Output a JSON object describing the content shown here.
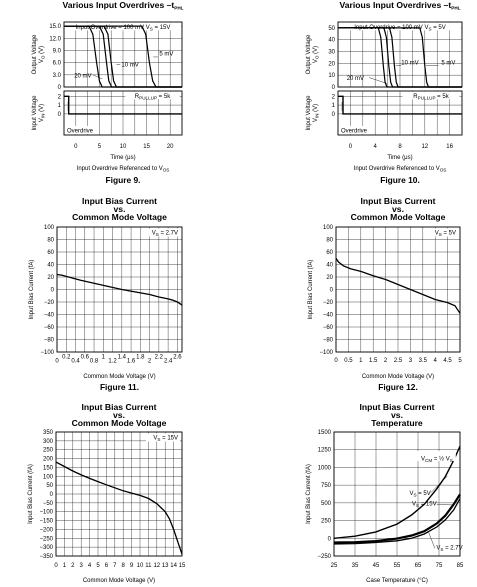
{
  "charts": [
    {
      "id": "fig9",
      "type": "line",
      "title": [
        "Various Input Overdrives –t_PHL"
      ],
      "figure": "Figure 9.",
      "time_axis": {
        "label": "Time (μs)",
        "sublabel": "Input Overdrive Referenced to V_OS",
        "ticks": [
          "0",
          "5",
          "10",
          "15",
          "20"
        ],
        "range": [
          -2.5,
          22.5
        ]
      },
      "output": {
        "label": "Output Voltage V_O (V)",
        "ticks": [
          "15.0",
          "12.0",
          "9.0",
          "6.0",
          "3.0",
          "0"
        ],
        "range": [
          0,
          16
        ],
        "header": "Input Overdrive = 100 mV   V_S = 15V"
      },
      "input": {
        "label": "Input Voltage V_IN (V)",
        "ticks": [
          "2",
          "1",
          "0"
        ],
        "range": [
          -2.4,
          2.6
        ],
        "annotation": "R_PULLUP = 5k",
        "overdrive_label": "Overdrive"
      },
      "curve_labels": [
        "5 mV",
        "10 mV",
        "20 mV"
      ],
      "chart_data": {
        "type": "line",
        "series": [
          {
            "name": "100 mV",
            "points": [
              [
                -2.5,
                15
              ],
              [
                2.8,
                15
              ],
              [
                3.6,
                13
              ],
              [
                4.4,
                6
              ],
              [
                5.0,
                1.5
              ],
              [
                5.6,
                0
              ],
              [
                22.5,
                0
              ]
            ]
          },
          {
            "name": "20 mV",
            "points": [
              [
                -2.5,
                15
              ],
              [
                5.0,
                15
              ],
              [
                5.8,
                13
              ],
              [
                6.5,
                6
              ],
              [
                7.0,
                1.5
              ],
              [
                7.6,
                0
              ],
              [
                22.5,
                0
              ]
            ]
          },
          {
            "name": "10 mV",
            "points": [
              [
                -2.5,
                15
              ],
              [
                6.0,
                15
              ],
              [
                6.8,
                13
              ],
              [
                7.5,
                6
              ],
              [
                8.0,
                1.5
              ],
              [
                8.6,
                0
              ],
              [
                22.5,
                0
              ]
            ]
          },
          {
            "name": "5 mV",
            "points": [
              [
                -2.5,
                15
              ],
              [
                14.0,
                15
              ],
              [
                14.8,
                13
              ],
              [
                15.6,
                6
              ],
              [
                16.3,
                1.5
              ],
              [
                17.0,
                0
              ],
              [
                22.5,
                0
              ]
            ]
          }
        ],
        "input_step": [
          [
            -2.5,
            2
          ],
          [
            -1.5,
            2
          ],
          [
            -1.5,
            0
          ],
          [
            22.5,
            0
          ]
        ]
      }
    },
    {
      "id": "fig10",
      "type": "line",
      "title": [
        "Various Input Overdrives –t_PHL"
      ],
      "figure": "Figure 10.",
      "time_axis": {
        "label": "Time (μs)",
        "sublabel": "Input Overdrive Referenced to V_OS",
        "ticks": [
          "0",
          "4",
          "8",
          "12",
          "16"
        ],
        "range": [
          -2,
          18
        ]
      },
      "output": {
        "label": "Output Voltage V_O (V)",
        "ticks": [
          "50",
          "40",
          "30",
          "20",
          "10",
          "0"
        ],
        "range": [
          0,
          55
        ],
        "header": "Input Overdrive = 100 mV   V_S = 5V"
      },
      "input": {
        "label": "Input Voltage V_IN (V)",
        "ticks": [
          "2",
          "1",
          "0"
        ],
        "range": [
          -2.4,
          2.6
        ],
        "annotation": "R_PULLUP = 5k",
        "overdrive_label": "Overdrive"
      },
      "curve_labels": [
        "5 mV",
        "10 mV",
        "20 mV"
      ],
      "chart_data": {
        "type": "line",
        "series": [
          {
            "name": "100 mV",
            "points": [
              [
                -2,
                50
              ],
              [
                4.5,
                50
              ],
              [
                4.9,
                42
              ],
              [
                5.3,
                18
              ],
              [
                5.6,
                4
              ],
              [
                5.9,
                0
              ],
              [
                18,
                0
              ]
            ]
          },
          {
            "name": "20 mV",
            "points": [
              [
                -2,
                50
              ],
              [
                5.4,
                50
              ],
              [
                5.8,
                42
              ],
              [
                6.2,
                18
              ],
              [
                6.5,
                4
              ],
              [
                6.8,
                0
              ],
              [
                18,
                0
              ]
            ]
          },
          {
            "name": "10 mV",
            "points": [
              [
                -2,
                50
              ],
              [
                6.3,
                50
              ],
              [
                6.7,
                42
              ],
              [
                7.1,
                18
              ],
              [
                7.4,
                4
              ],
              [
                7.7,
                0
              ],
              [
                18,
                0
              ]
            ]
          },
          {
            "name": "5 mV",
            "points": [
              [
                -2,
                50
              ],
              [
                11.2,
                50
              ],
              [
                11.6,
                42
              ],
              [
                12.0,
                18
              ],
              [
                12.3,
                4
              ],
              [
                12.6,
                0
              ],
              [
                18,
                0
              ]
            ]
          }
        ],
        "input_step": [
          [
            -2,
            2
          ],
          [
            -1.2,
            2
          ],
          [
            -1.2,
            0
          ],
          [
            18,
            0
          ]
        ]
      }
    },
    {
      "id": "fig11",
      "title": [
        "Input Bias Current",
        "vs.",
        "Common Mode Voltage"
      ],
      "figure": "Figure 11.",
      "ylabel": "Input Bias Current (fA)",
      "xlabel": "Common Mode Voltage (V)",
      "note": "V_S = 2.7V",
      "yticks": [
        "100",
        "80",
        "60",
        "40",
        "20",
        "0",
        "−20",
        "−40",
        "−60",
        "−80",
        "−100"
      ],
      "xticks": [
        "0",
        "0.2",
        "0.4",
        "0.6",
        "0.8",
        "1",
        "1.2",
        "1.4",
        "1.6",
        "1.8",
        "2",
        "2.2",
        "2.4",
        "2.6"
      ],
      "chart_data": {
        "type": "line",
        "xlim": [
          0,
          2.7
        ],
        "ylim": [
          -100,
          100
        ],
        "x": [
          0,
          0.1,
          0.3,
          0.5,
          0.8,
          1.1,
          1.4,
          1.7,
          2.0,
          2.2,
          2.4,
          2.5,
          2.6,
          2.7
        ],
        "y": [
          24,
          23,
          19,
          15,
          10,
          5,
          0,
          -4,
          -8,
          -12,
          -15,
          -17,
          -20,
          -25
        ]
      }
    },
    {
      "id": "fig12",
      "title": [
        "Input Bias Current",
        "vs.",
        "Common Mode Voltage"
      ],
      "figure": "Figure 12.",
      "ylabel": "Input Bias Current (fA)",
      "xlabel": "Common Mode Voltage (V)",
      "note": "V_S = 5V",
      "yticks": [
        "100",
        "80",
        "60",
        "40",
        "20",
        "0",
        "−20",
        "−40",
        "−60",
        "−80",
        "−100"
      ],
      "xticks": [
        "0",
        "0.5",
        "1",
        "1.5",
        "2",
        "2.5",
        "3",
        "3.5",
        "4",
        "4.5",
        "5"
      ],
      "chart_data": {
        "type": "line",
        "xlim": [
          0,
          5
        ],
        "ylim": [
          -100,
          100
        ],
        "x": [
          0,
          0.1,
          0.3,
          0.6,
          1.0,
          1.5,
          2.0,
          2.5,
          3.0,
          3.5,
          4.0,
          4.5,
          4.8,
          5.0
        ],
        "y": [
          50,
          44,
          38,
          33,
          29,
          22,
          16,
          8,
          0,
          -8,
          -16,
          -21,
          -26,
          -38
        ]
      }
    },
    {
      "id": "fig13",
      "title": [
        "Input Bias Current",
        "vs.",
        "Common Mode Voltage"
      ],
      "figure": "",
      "ylabel": "Input Bias Current (fA)",
      "xlabel": "Common Mode Voltage (V)",
      "note": "V_S = 15V",
      "yticks": [
        "350",
        "300",
        "250",
        "200",
        "150",
        "100",
        "50",
        "0",
        "−50",
        "−100",
        "−150",
        "−200",
        "−250",
        "−300",
        "−350"
      ],
      "xticks": [
        "0",
        "1",
        "2",
        "3",
        "4",
        "5",
        "6",
        "7",
        "8",
        "9",
        "10",
        "11",
        "12",
        "13",
        "14",
        "15"
      ],
      "chart_data": {
        "type": "line",
        "xlim": [
          0,
          15
        ],
        "ylim": [
          -350,
          350
        ],
        "x": [
          0,
          1,
          2,
          3,
          4,
          5,
          6,
          7,
          8,
          9,
          10,
          11,
          12,
          13,
          13.5,
          14,
          14.5,
          15
        ],
        "y": [
          180,
          155,
          130,
          108,
          88,
          70,
          52,
          35,
          18,
          5,
          -8,
          -25,
          -55,
          -100,
          -140,
          -200,
          -270,
          -340
        ]
      }
    },
    {
      "id": "fig14",
      "title": [
        "Input Bias Current",
        "vs.",
        "Temperature"
      ],
      "figure": "",
      "ylabel": "Input Bias Current (fA)",
      "xlabel": "Case Temperature (°C)",
      "yticks": [
        "1500",
        "1250",
        "1000",
        "750",
        "500",
        "250",
        "0",
        "−250"
      ],
      "xticks": [
        "25",
        "35",
        "45",
        "55",
        "65",
        "75",
        "85"
      ],
      "curve_labels": {
        "vcm": "V_CM = ½ V_S",
        "s5": "V_S = 5V",
        "s15": "V_S = 15V",
        "s27": "V_S = 2.7V"
      },
      "chart_data": {
        "type": "line",
        "xlim": [
          25,
          85
        ],
        "ylim": [
          -250,
          1500
        ],
        "series": [
          {
            "name": "V_S = 15V",
            "x": [
              25,
              35,
              45,
              55,
              62,
              68,
              74,
              78,
              82,
              85
            ],
            "y": [
              0,
              30,
              90,
              200,
              330,
              480,
              700,
              870,
              1100,
              1300
            ]
          },
          {
            "name": "V_S = 5V",
            "x": [
              25,
              35,
              45,
              55,
              62,
              68,
              74,
              78,
              82,
              85
            ],
            "y": [
              -60,
              -55,
              -40,
              -5,
              40,
              100,
              210,
              320,
              480,
              620
            ]
          },
          {
            "name": "V_S = 2.7V",
            "x": [
              25,
              35,
              45,
              55,
              62,
              68,
              74,
              78,
              82,
              85
            ],
            "y": [
              -80,
              -75,
              -60,
              -35,
              0,
              60,
              160,
              260,
              400,
              560
            ]
          }
        ]
      }
    }
  ]
}
